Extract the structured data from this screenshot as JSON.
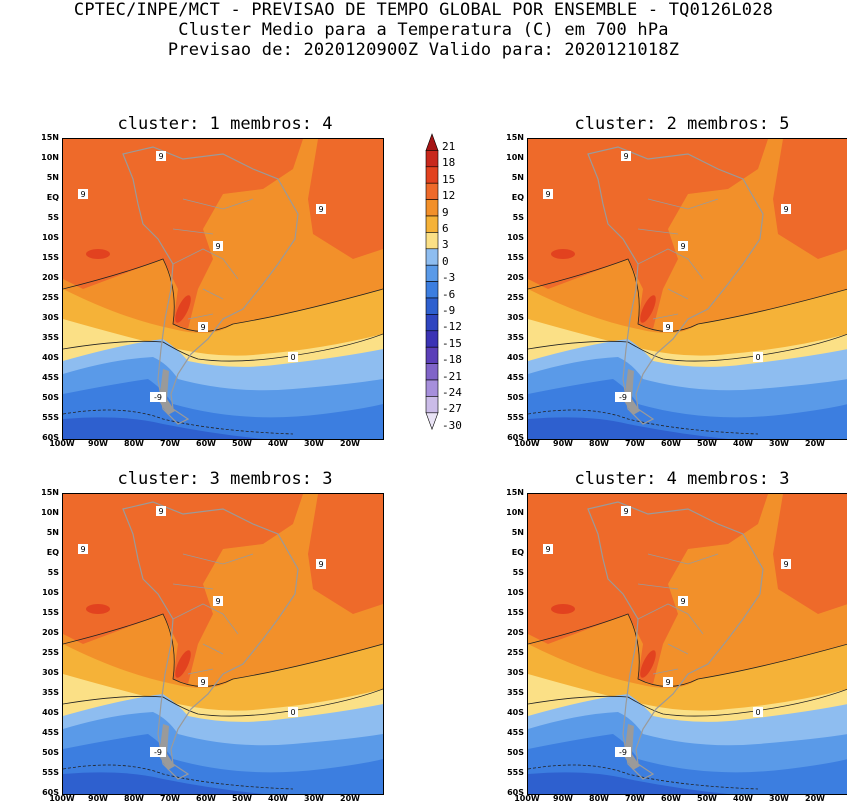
{
  "header": {
    "line1": "CPTEC/INPE/MCT - PREVISAO DE TEMPO GLOBAL POR ENSEMBLE - TQ0126L028",
    "line2": "Cluster Medio para a Temperatura (C) em 700 hPa",
    "line3": "Previsao de: 2020120900Z   Valido para: 2020121018Z"
  },
  "panels": [
    {
      "title": "cluster: 1   membros: 4"
    },
    {
      "title": "cluster: 2   membros: 5"
    },
    {
      "title": "cluster: 3   membros: 3"
    },
    {
      "title": "cluster: 4   membros: 3"
    }
  ],
  "lat_labels": [
    "15N",
    "10N",
    "5N",
    "EQ",
    "5S",
    "10S",
    "15S",
    "20S",
    "25S",
    "30S",
    "35S",
    "40S",
    "45S",
    "50S",
    "55S",
    "60S"
  ],
  "lon_labels": [
    "100W",
    "90W",
    "80W",
    "70W",
    "60W",
    "50W",
    "40W",
    "30W",
    "20W"
  ],
  "colorbar": {
    "labels": [
      "21",
      "18",
      "15",
      "12",
      "9",
      "6",
      "3",
      "0",
      "-3",
      "-6",
      "-9",
      "-12",
      "-15",
      "-18",
      "-21",
      "-24",
      "-27",
      "-30"
    ],
    "colors": [
      "#a51515",
      "#c8281c",
      "#e2421f",
      "#ee6a2a",
      "#f2902a",
      "#f5b238",
      "#fbe086",
      "#8ebdf0",
      "#5a9ae8",
      "#3c7ee0",
      "#2e60cf",
      "#2f45c0",
      "#3b33b5",
      "#5b3fb8",
      "#8064c8",
      "#a68fdb",
      "#cbbce8",
      "#e9e3f5"
    ]
  },
  "contour_labels": {
    "nine": "9",
    "zero": "0",
    "minus_nine": "-9"
  },
  "chart_data": {
    "type": "map",
    "variable": "Temperatura (C) em 700 hPa",
    "lat_range": [
      "60S",
      "15N"
    ],
    "lon_range": [
      "100W",
      "20W"
    ],
    "contour_levels": [
      -30,
      -27,
      -24,
      -21,
      -18,
      -15,
      -12,
      -9,
      -6,
      -3,
      0,
      3,
      6,
      9,
      12,
      15,
      18,
      21
    ],
    "highlighted_contours": [
      9,
      0,
      -9
    ],
    "panels": [
      {
        "cluster": 1,
        "membros": 4
      },
      {
        "cluster": 2,
        "membros": 5
      },
      {
        "cluster": 3,
        "membros": 3
      },
      {
        "cluster": 4,
        "membros": 3
      }
    ]
  }
}
